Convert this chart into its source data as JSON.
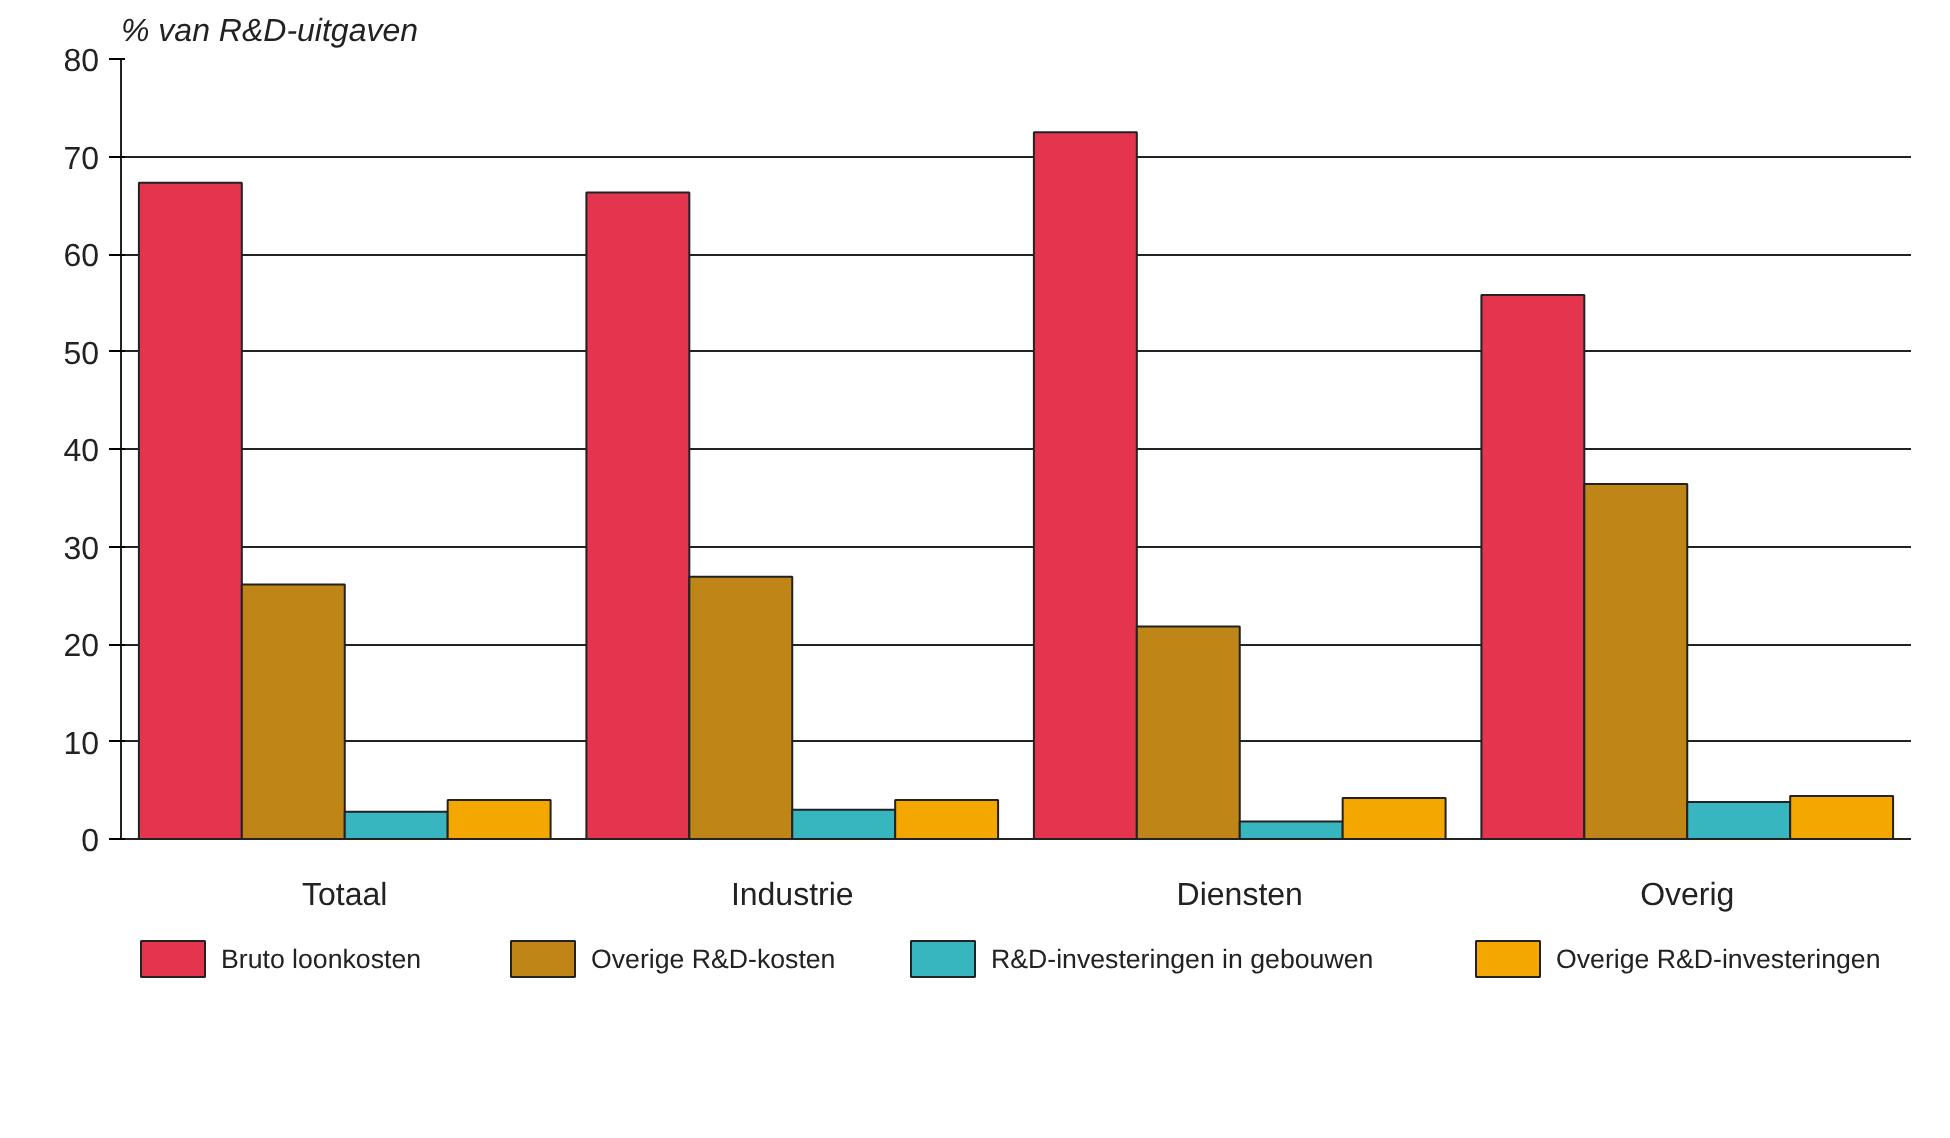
{
  "chart_data": {
    "type": "bar",
    "ylabel": "% van R&D-uitgaven",
    "categories": [
      "Totaal",
      "Industrie",
      "Diensten",
      "Overig"
    ],
    "series": [
      {
        "name": "Bruto loonkosten",
        "color": "#e4344e",
        "values": [
          67.3,
          66.3,
          72.5,
          55.8
        ]
      },
      {
        "name": "Overige R&D-kosten",
        "color": "#bf8516",
        "values": [
          26.1,
          26.9,
          21.8,
          36.4
        ]
      },
      {
        "name": "R&D-investeringen in gebouwen",
        "color": "#38b6c0",
        "values": [
          2.8,
          3.0,
          1.8,
          3.8
        ]
      },
      {
        "name": "Overige R&D-investeringen",
        "color": "#f4a700",
        "values": [
          4.0,
          4.0,
          4.2,
          4.4
        ]
      }
    ],
    "ylim": [
      0,
      80
    ],
    "yticks": [
      0,
      10,
      20,
      30,
      40,
      50,
      60,
      70,
      80
    ],
    "grid": "y",
    "legend": "bottom"
  }
}
